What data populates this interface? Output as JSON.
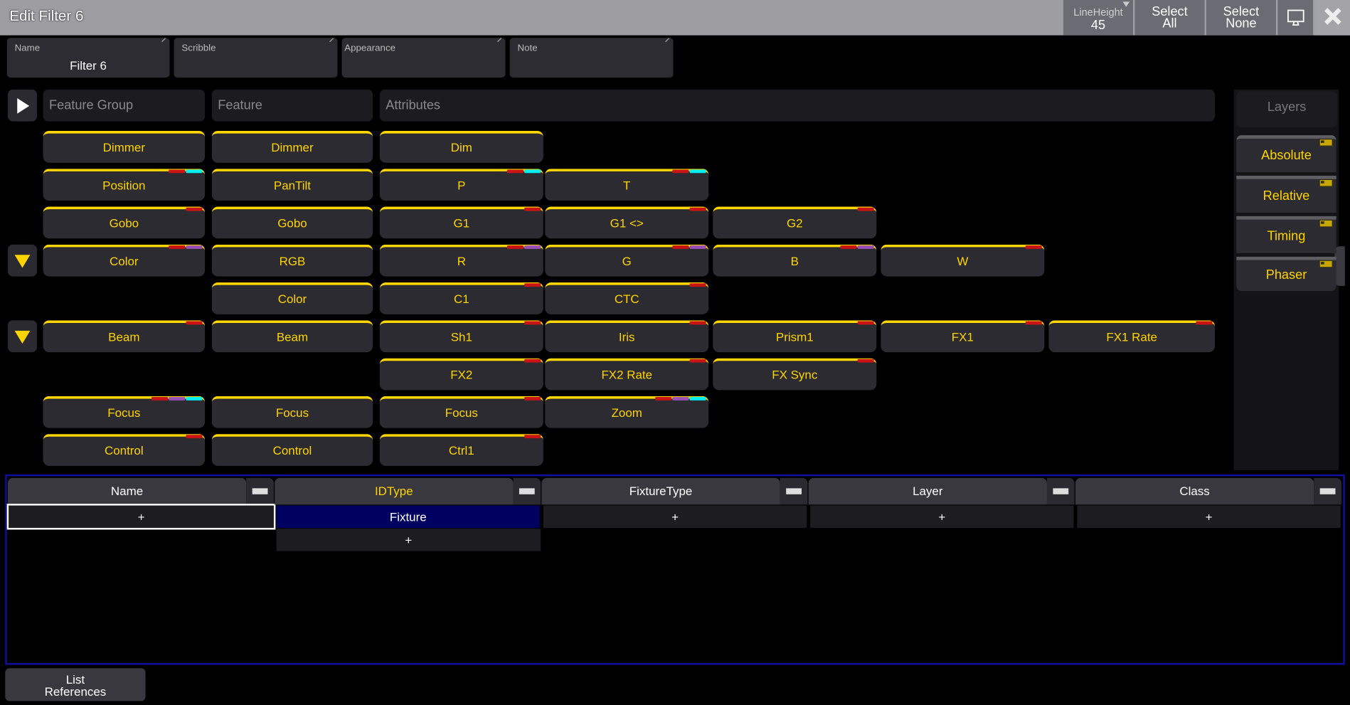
{
  "window": {
    "title": "Edit Filter 6"
  },
  "toolbar": {
    "lineheight_label": "LineHeight",
    "lineheight_value": "45",
    "select_all": [
      "Select",
      "All"
    ],
    "select_none": [
      "Select",
      "None"
    ],
    "monitor_icon": "monitor-icon",
    "close_icon": "close-icon"
  },
  "fields": [
    {
      "label": "Name",
      "value": "Filter 6"
    },
    {
      "label": "Scribble",
      "value": ""
    },
    {
      "label": "Appearance",
      "value": ""
    },
    {
      "label": "Note",
      "value": ""
    }
  ],
  "headers": {
    "feature_group": "Feature Group",
    "feature": "Feature",
    "attributes": "Attributes"
  },
  "colors": {
    "accent": "#ffd400",
    "red": "#c81414",
    "cyan": "#00eef0",
    "purple": "#9a50b4",
    "selected": "#000060"
  },
  "grid_rows": [
    {
      "group": {
        "label": "Dimmer",
        "markers": []
      },
      "feature": {
        "label": "Dimmer"
      },
      "attributes": [
        {
          "label": "Dim",
          "markers": []
        }
      ]
    },
    {
      "group": {
        "label": "Position",
        "markers": [
          "red",
          "cyan"
        ]
      },
      "feature": {
        "label": "PanTilt"
      },
      "attributes": [
        {
          "label": "P",
          "markers": [
            "red",
            "cyan"
          ]
        },
        {
          "label": "T",
          "markers": [
            "red",
            "cyan"
          ]
        }
      ]
    },
    {
      "group": {
        "label": "Gobo",
        "markers": [
          "red"
        ]
      },
      "feature": {
        "label": "Gobo"
      },
      "attributes": [
        {
          "label": "G1",
          "markers": [
            "red"
          ]
        },
        {
          "label": "G1 <>",
          "markers": [
            "red"
          ]
        },
        {
          "label": "G2",
          "markers": [
            "red"
          ]
        }
      ]
    },
    {
      "expand": true,
      "group": {
        "label": "Color",
        "markers": [
          "red",
          "purple"
        ]
      },
      "feature": {
        "label": "RGB"
      },
      "attributes": [
        {
          "label": "R",
          "markers": [
            "red",
            "purple"
          ]
        },
        {
          "label": "G",
          "markers": [
            "red",
            "purple"
          ]
        },
        {
          "label": "B",
          "markers": [
            "red",
            "purple"
          ]
        },
        {
          "label": "W",
          "markers": [
            "red"
          ]
        }
      ]
    },
    {
      "feature": {
        "label": "Color"
      },
      "attributes": [
        {
          "label": "C1",
          "markers": [
            "red"
          ]
        },
        {
          "label": "CTC",
          "markers": [
            "red"
          ]
        }
      ]
    },
    {
      "expand": true,
      "group": {
        "label": "Beam",
        "markers": [
          "red"
        ]
      },
      "feature": {
        "label": "Beam"
      },
      "attributes": [
        {
          "label": "Sh1",
          "markers": [
            "red"
          ]
        },
        {
          "label": "Iris",
          "markers": [
            "red"
          ]
        },
        {
          "label": "Prism1",
          "markers": [
            "red"
          ]
        },
        {
          "label": "FX1",
          "markers": [
            "red"
          ]
        },
        {
          "label": "FX1 Rate",
          "markers": [
            "red"
          ]
        }
      ]
    },
    {
      "attributes": [
        {
          "label": "FX2",
          "markers": [
            "red"
          ]
        },
        {
          "label": "FX2 Rate",
          "markers": [
            "red"
          ]
        },
        {
          "label": "FX Sync",
          "markers": [
            "red"
          ]
        }
      ]
    },
    {
      "group": {
        "label": "Focus",
        "markers": [
          "red",
          "purple",
          "cyan"
        ]
      },
      "feature": {
        "label": "Focus"
      },
      "attributes": [
        {
          "label": "Focus",
          "markers": [
            "red"
          ]
        },
        {
          "label": "Zoom",
          "markers": [
            "red",
            "purple",
            "cyan"
          ]
        }
      ]
    },
    {
      "group": {
        "label": "Control",
        "markers": [
          "red"
        ]
      },
      "feature": {
        "label": "Control"
      },
      "attributes": [
        {
          "label": "Ctrl1",
          "markers": [
            "red"
          ]
        }
      ]
    }
  ],
  "layers": {
    "title": "Layers",
    "items": [
      "Absolute",
      "Relative",
      "Timing",
      "Phaser"
    ]
  },
  "table": {
    "columns": [
      "Name",
      "IDType",
      "FixtureType",
      "Layer",
      "Class"
    ],
    "row1": [
      "+",
      "Fixture",
      "+",
      "+",
      "+"
    ],
    "row2_idtype": "+"
  },
  "list_references": [
    "List",
    "References"
  ]
}
